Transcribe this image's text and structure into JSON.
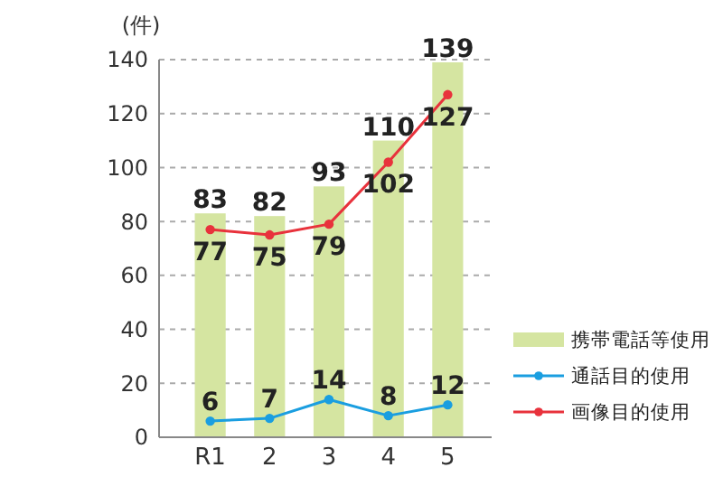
{
  "chart_data": {
    "type": "bar",
    "ylabel": "(件)",
    "categories": [
      "R1",
      "2",
      "3",
      "4",
      "5"
    ],
    "series": [
      {
        "name": "携帯電話等使用",
        "color": "#d5e5a1",
        "values": [
          83,
          82,
          93,
          110,
          139
        ]
      },
      {
        "name": "通話目的使用",
        "type": "line",
        "color": "#1a9ee0",
        "values": [
          6,
          7,
          14,
          8,
          12
        ]
      },
      {
        "name": "画像目的使用",
        "type": "line",
        "color": "#e8323c",
        "values": [
          77,
          75,
          79,
          102,
          127
        ]
      }
    ],
    "ylim": [
      0,
      140
    ],
    "yticks": [
      0,
      20,
      40,
      60,
      80,
      100,
      120,
      140
    ],
    "grid": "y",
    "legend": "bottom right",
    "marker": "circle",
    "line_style": "solid",
    "data_labels": true
  }
}
